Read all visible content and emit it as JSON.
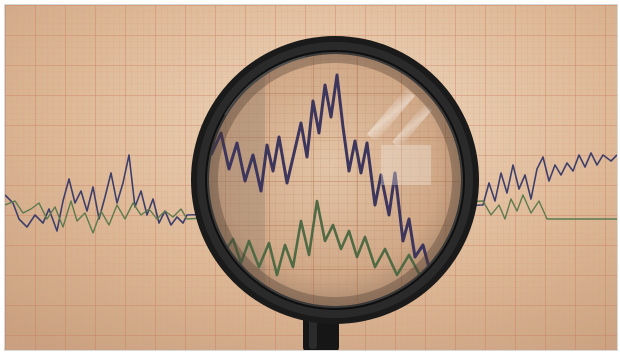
{
  "image": {
    "kind": "photograph",
    "subject": "magnifying-glass",
    "colors": {
      "paper": "#d8b592",
      "paper_light": "#ead0b4",
      "grid_major": "#c8684a",
      "grid_minor": "#d89a80",
      "trace_dark": "#3d3f6b",
      "trace_green": "#5d7a4e",
      "lens_frame": "#1c1c1c",
      "frame_border": "#ffffff"
    },
    "icons": [
      "magnifying-glass-icon"
    ]
  }
}
